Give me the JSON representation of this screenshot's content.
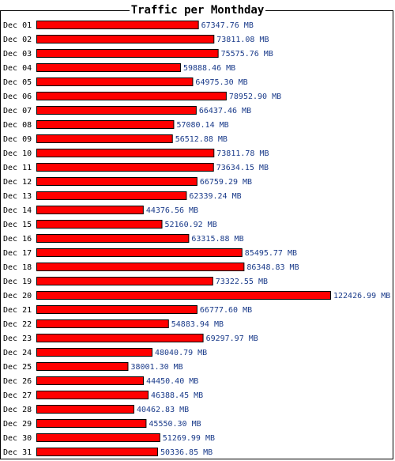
{
  "chart_data": {
    "type": "bar",
    "orientation": "horizontal",
    "title": "Traffic per Monthday",
    "unit": "MB",
    "bar_color": "#ff0000",
    "bar_border": "#000000",
    "label_color": "#1a3b8a",
    "grid": false,
    "categories": [
      "Dec 01",
      "Dec 02",
      "Dec 03",
      "Dec 04",
      "Dec 05",
      "Dec 06",
      "Dec 07",
      "Dec 08",
      "Dec 09",
      "Dec 10",
      "Dec 11",
      "Dec 12",
      "Dec 13",
      "Dec 14",
      "Dec 15",
      "Dec 16",
      "Dec 17",
      "Dec 18",
      "Dec 19",
      "Dec 20",
      "Dec 21",
      "Dec 22",
      "Dec 23",
      "Dec 24",
      "Dec 25",
      "Dec 26",
      "Dec 27",
      "Dec 28",
      "Dec 29",
      "Dec 30",
      "Dec 31"
    ],
    "values": [
      67347.76,
      73811.08,
      75575.76,
      59888.46,
      64975.3,
      78952.9,
      66437.46,
      57080.14,
      56512.88,
      73811.78,
      73634.15,
      66759.29,
      62339.24,
      44376.56,
      52160.92,
      63315.88,
      85495.77,
      86348.83,
      73322.55,
      122426.99,
      66777.6,
      54883.94,
      69297.97,
      48040.79,
      38001.3,
      44450.4,
      46388.45,
      40462.83,
      45550.3,
      51269.99,
      50336.85
    ],
    "value_labels": [
      "67347.76 MB",
      "73811.08 MB",
      "75575.76 MB",
      "59888.46 MB",
      "64975.30 MB",
      "78952.90 MB",
      "66437.46 MB",
      "57080.14 MB",
      "56512.88 MB",
      "73811.78 MB",
      "73634.15 MB",
      "66759.29 MB",
      "62339.24 MB",
      "44376.56 MB",
      "52160.92 MB",
      "63315.88 MB",
      "85495.77 MB",
      "86348.83 MB",
      "73322.55 MB",
      "122426.99 MB",
      "66777.60 MB",
      "54883.94 MB",
      "69297.97 MB",
      "48040.79 MB",
      "38001.30 MB",
      "44450.40 MB",
      "46388.45 MB",
      "40462.83 MB",
      "45550.30 MB",
      "51269.99 MB",
      "50336.85 MB"
    ]
  }
}
